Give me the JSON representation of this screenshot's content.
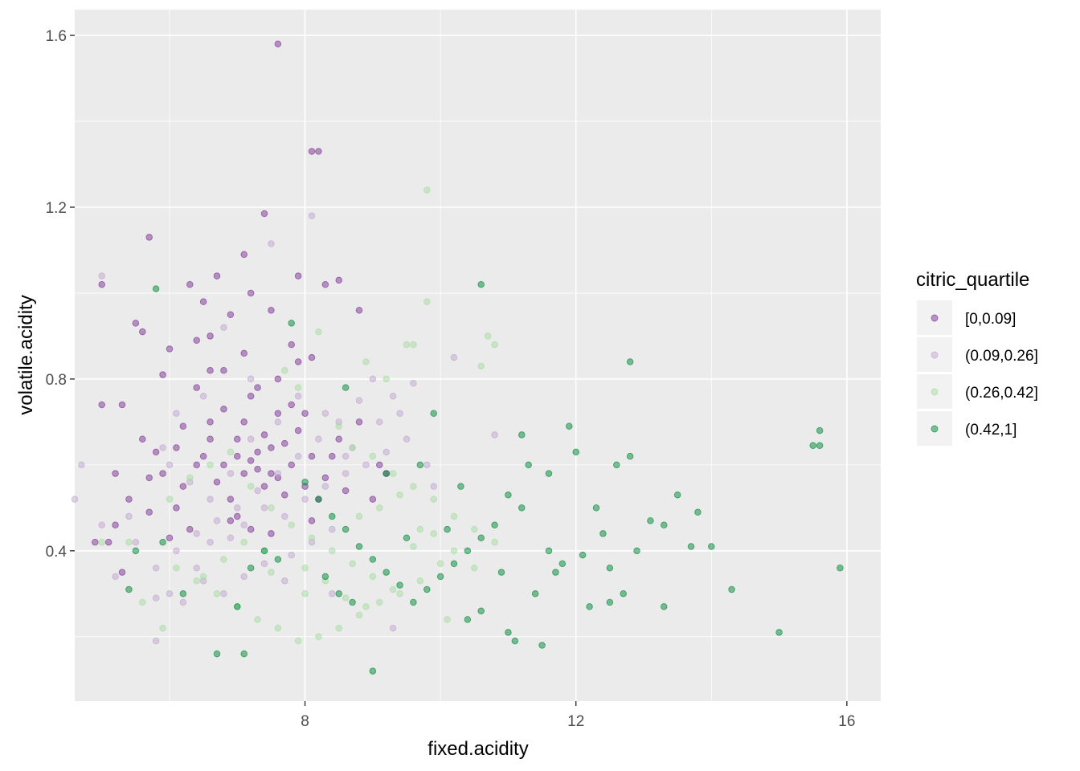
{
  "chart_data": {
    "type": "scatter",
    "title": "",
    "xlabel": "fixed.acidity",
    "ylabel": "volatile.acidity",
    "xlim": [
      4.6,
      16.5
    ],
    "ylim": [
      0.05,
      1.66
    ],
    "x_ticks": [
      8,
      12,
      16
    ],
    "y_ticks": [
      0.4,
      0.8,
      1.2,
      1.6
    ],
    "x_tick_labels": [
      "8",
      "12",
      "16"
    ],
    "y_tick_labels": [
      "0.4",
      "0.8",
      "1.2",
      "1.6"
    ],
    "grid": true,
    "panel_background": "#EBEBEB",
    "legend": {
      "title": "citric_quartile",
      "position": "right"
    },
    "series": [
      {
        "name": "[0,0.09]",
        "color": "#7B3294",
        "points": [
          [
            7.6,
            1.58
          ],
          [
            8.1,
            1.33
          ],
          [
            8.2,
            1.33
          ],
          [
            7.4,
            1.185
          ],
          [
            5.7,
            1.13
          ],
          [
            7.9,
            1.04
          ],
          [
            5.0,
            1.02
          ],
          [
            6.7,
            1.04
          ],
          [
            8.3,
            1.02
          ],
          [
            8.5,
            1.03
          ],
          [
            7.1,
            1.09
          ],
          [
            6.5,
            0.98
          ],
          [
            7.2,
            1.0
          ],
          [
            7.5,
            0.96
          ],
          [
            6.9,
            0.95
          ],
          [
            6.3,
            1.02
          ],
          [
            5.5,
            0.93
          ],
          [
            5.6,
            0.91
          ],
          [
            6.0,
            0.87
          ],
          [
            6.4,
            0.89
          ],
          [
            6.6,
            0.9
          ],
          [
            7.1,
            0.86
          ],
          [
            7.8,
            0.88
          ],
          [
            8.1,
            0.85
          ],
          [
            5.0,
            0.74
          ],
          [
            5.3,
            0.74
          ],
          [
            5.6,
            0.66
          ],
          [
            5.8,
            0.63
          ],
          [
            5.2,
            0.58
          ],
          [
            5.4,
            0.52
          ],
          [
            5.9,
            0.58
          ],
          [
            6.1,
            0.64
          ],
          [
            5.2,
            0.46
          ],
          [
            5.1,
            0.42
          ],
          [
            5.3,
            0.35
          ],
          [
            5.7,
            0.49
          ],
          [
            6.2,
            0.55
          ],
          [
            6.4,
            0.6
          ],
          [
            6.6,
            0.7
          ],
          [
            6.8,
            0.73
          ],
          [
            7.0,
            0.66
          ],
          [
            7.1,
            0.7
          ],
          [
            7.2,
            0.61
          ],
          [
            7.3,
            0.63
          ],
          [
            7.4,
            0.67
          ],
          [
            7.5,
            0.58
          ],
          [
            7.6,
            0.72
          ],
          [
            7.7,
            0.65
          ],
          [
            7.8,
            0.6
          ],
          [
            7.9,
            0.68
          ],
          [
            8.0,
            0.55
          ],
          [
            8.1,
            0.62
          ],
          [
            8.2,
            0.52
          ],
          [
            8.3,
            0.57
          ],
          [
            6.5,
            0.62
          ],
          [
            6.7,
            0.56
          ],
          [
            6.9,
            0.52
          ],
          [
            7.0,
            0.48
          ],
          [
            7.2,
            0.45
          ],
          [
            6.3,
            0.45
          ],
          [
            6.1,
            0.5
          ],
          [
            6.0,
            0.43
          ],
          [
            6.8,
            0.82
          ],
          [
            7.3,
            0.78
          ],
          [
            7.6,
            0.8
          ],
          [
            7.9,
            0.84
          ],
          [
            8.5,
            0.66
          ],
          [
            8.8,
            0.7
          ],
          [
            9.1,
            0.6
          ],
          [
            8.8,
            0.96
          ],
          [
            9.2,
            0.58
          ],
          [
            9.0,
            0.52
          ],
          [
            8.6,
            0.54
          ],
          [
            7.1,
            0.58
          ],
          [
            7.4,
            0.55
          ],
          [
            7.7,
            0.53
          ],
          [
            6.8,
            0.6
          ],
          [
            7.0,
            0.62
          ],
          [
            7.3,
            0.59
          ],
          [
            7.5,
            0.64
          ],
          [
            7.6,
            0.57
          ],
          [
            6.6,
            0.66
          ],
          [
            6.4,
            0.78
          ],
          [
            6.6,
            0.82
          ],
          [
            7.2,
            0.76
          ],
          [
            7.8,
            0.74
          ],
          [
            8.0,
            0.72
          ],
          [
            8.4,
            0.62
          ],
          [
            5.7,
            0.57
          ],
          [
            4.9,
            0.42
          ],
          [
            5.9,
            0.81
          ],
          [
            6.2,
            0.69
          ],
          [
            7.5,
            0.44
          ],
          [
            6.9,
            0.47
          ],
          [
            8.1,
            0.47
          ]
        ]
      },
      {
        "name": "(0.09,0.26]",
        "color": "#C2A5CF",
        "points": [
          [
            8.1,
            1.18
          ],
          [
            7.5,
            1.115
          ],
          [
            5.0,
            1.04
          ],
          [
            4.6,
            0.52
          ],
          [
            4.7,
            0.6
          ],
          [
            5.2,
            0.34
          ],
          [
            5.0,
            0.46
          ],
          [
            5.4,
            0.48
          ],
          [
            5.8,
            0.29
          ],
          [
            5.8,
            0.19
          ],
          [
            6.0,
            0.3
          ],
          [
            6.2,
            0.28
          ],
          [
            6.4,
            0.36
          ],
          [
            6.6,
            0.42
          ],
          [
            6.9,
            0.43
          ],
          [
            7.1,
            0.46
          ],
          [
            7.4,
            0.5
          ],
          [
            7.7,
            0.48
          ],
          [
            8.0,
            0.52
          ],
          [
            8.3,
            0.55
          ],
          [
            8.6,
            0.58
          ],
          [
            8.9,
            0.6
          ],
          [
            9.2,
            0.63
          ],
          [
            9.5,
            0.66
          ],
          [
            10.2,
            0.85
          ],
          [
            10.8,
            0.67
          ],
          [
            9.0,
            0.8
          ],
          [
            8.8,
            0.75
          ],
          [
            8.5,
            0.7
          ],
          [
            8.2,
            0.66
          ],
          [
            7.9,
            0.62
          ],
          [
            7.6,
            0.58
          ],
          [
            7.3,
            0.54
          ],
          [
            7.0,
            0.5
          ],
          [
            6.7,
            0.47
          ],
          [
            6.4,
            0.44
          ],
          [
            6.1,
            0.4
          ],
          [
            5.8,
            0.36
          ],
          [
            5.5,
            0.42
          ],
          [
            5.9,
            0.64
          ],
          [
            6.1,
            0.72
          ],
          [
            6.5,
            0.76
          ],
          [
            6.8,
            0.92
          ],
          [
            7.2,
            0.8
          ],
          [
            7.6,
            0.7
          ],
          [
            7.9,
            0.76
          ],
          [
            8.3,
            0.72
          ],
          [
            8.7,
            0.64
          ],
          [
            9.1,
            0.7
          ],
          [
            9.4,
            0.72
          ],
          [
            9.8,
            0.6
          ],
          [
            9.9,
            0.55
          ],
          [
            8.4,
            0.45
          ],
          [
            8.1,
            0.42
          ],
          [
            7.8,
            0.39
          ],
          [
            7.4,
            0.37
          ],
          [
            7.1,
            0.34
          ],
          [
            6.8,
            0.3
          ],
          [
            6.5,
            0.33
          ],
          [
            9.3,
            0.22
          ],
          [
            8.4,
            0.3
          ],
          [
            7.7,
            0.33
          ],
          [
            7.2,
            0.66
          ],
          [
            6.9,
            0.58
          ],
          [
            6.6,
            0.52
          ],
          [
            6.3,
            0.56
          ],
          [
            6.0,
            0.6
          ],
          [
            8.6,
            0.62
          ],
          [
            9.6,
            0.79
          ],
          [
            9.3,
            0.76
          ]
        ]
      },
      {
        "name": "(0.26,0.42]",
        "color": "#A6DBA0",
        "points": [
          [
            9.8,
            1.24
          ],
          [
            9.8,
            0.98
          ],
          [
            10.7,
            0.9
          ],
          [
            10.8,
            0.88
          ],
          [
            10.6,
            0.83
          ],
          [
            9.5,
            0.88
          ],
          [
            9.6,
            0.88
          ],
          [
            9.2,
            0.8
          ],
          [
            8.9,
            0.84
          ],
          [
            8.2,
            0.91
          ],
          [
            7.7,
            0.82
          ],
          [
            7.9,
            0.78
          ],
          [
            8.5,
            0.69
          ],
          [
            8.7,
            0.64
          ],
          [
            9.0,
            0.62
          ],
          [
            9.3,
            0.58
          ],
          [
            9.6,
            0.55
          ],
          [
            9.9,
            0.52
          ],
          [
            10.2,
            0.48
          ],
          [
            10.5,
            0.45
          ],
          [
            10.0,
            0.37
          ],
          [
            9.7,
            0.33
          ],
          [
            9.4,
            0.3
          ],
          [
            9.1,
            0.28
          ],
          [
            8.8,
            0.25
          ],
          [
            8.5,
            0.22
          ],
          [
            8.2,
            0.2
          ],
          [
            7.9,
            0.19
          ],
          [
            7.6,
            0.22
          ],
          [
            7.3,
            0.24
          ],
          [
            7.0,
            0.27
          ],
          [
            6.7,
            0.3
          ],
          [
            6.4,
            0.33
          ],
          [
            6.1,
            0.36
          ],
          [
            5.9,
            0.22
          ],
          [
            5.6,
            0.28
          ],
          [
            5.4,
            0.42
          ],
          [
            5.0,
            0.42
          ],
          [
            6.0,
            0.52
          ],
          [
            6.3,
            0.57
          ],
          [
            6.6,
            0.6
          ],
          [
            6.9,
            0.63
          ],
          [
            7.2,
            0.55
          ],
          [
            7.5,
            0.5
          ],
          [
            7.8,
            0.46
          ],
          [
            8.1,
            0.43
          ],
          [
            8.4,
            0.4
          ],
          [
            8.7,
            0.37
          ],
          [
            9.0,
            0.34
          ],
          [
            9.3,
            0.31
          ],
          [
            9.6,
            0.41
          ],
          [
            9.9,
            0.44
          ],
          [
            10.2,
            0.4
          ],
          [
            10.5,
            0.36
          ],
          [
            10.8,
            0.42
          ],
          [
            8.0,
            0.36
          ],
          [
            8.3,
            0.33
          ],
          [
            8.6,
            0.29
          ],
          [
            8.9,
            0.27
          ],
          [
            7.4,
            0.4
          ],
          [
            7.1,
            0.42
          ],
          [
            6.8,
            0.38
          ],
          [
            6.5,
            0.34
          ],
          [
            9.4,
            0.53
          ],
          [
            9.1,
            0.5
          ],
          [
            8.8,
            0.48
          ],
          [
            10.1,
            0.24
          ],
          [
            8.0,
            0.3
          ],
          [
            7.5,
            0.35
          ],
          [
            9.7,
            0.45
          ]
        ]
      },
      {
        "name": "(0.42,1]",
        "color": "#008837",
        "points": [
          [
            10.6,
            1.02
          ],
          [
            12.8,
            0.84
          ],
          [
            15.6,
            0.68
          ],
          [
            15.5,
            0.645
          ],
          [
            15.6,
            0.645
          ],
          [
            15.9,
            0.36
          ],
          [
            15.0,
            0.21
          ],
          [
            14.3,
            0.31
          ],
          [
            14.0,
            0.41
          ],
          [
            13.7,
            0.41
          ],
          [
            13.8,
            0.49
          ],
          [
            13.5,
            0.53
          ],
          [
            13.3,
            0.46
          ],
          [
            13.1,
            0.47
          ],
          [
            12.9,
            0.4
          ],
          [
            12.7,
            0.3
          ],
          [
            12.5,
            0.36
          ],
          [
            12.3,
            0.5
          ],
          [
            12.0,
            0.63
          ],
          [
            11.9,
            0.69
          ],
          [
            11.6,
            0.58
          ],
          [
            11.3,
            0.6
          ],
          [
            11.2,
            0.67
          ],
          [
            11.0,
            0.53
          ],
          [
            10.8,
            0.46
          ],
          [
            10.6,
            0.43
          ],
          [
            10.4,
            0.4
          ],
          [
            10.2,
            0.37
          ],
          [
            10.0,
            0.34
          ],
          [
            9.8,
            0.31
          ],
          [
            9.6,
            0.28
          ],
          [
            9.4,
            0.32
          ],
          [
            9.2,
            0.35
          ],
          [
            9.0,
            0.38
          ],
          [
            8.8,
            0.41
          ],
          [
            8.6,
            0.45
          ],
          [
            8.4,
            0.48
          ],
          [
            8.2,
            0.52
          ],
          [
            8.0,
            0.56
          ],
          [
            7.8,
            0.93
          ],
          [
            7.6,
            0.38
          ],
          [
            7.4,
            0.4
          ],
          [
            7.2,
            0.36
          ],
          [
            7.0,
            0.27
          ],
          [
            7.1,
            0.16
          ],
          [
            6.7,
            0.16
          ],
          [
            6.2,
            0.3
          ],
          [
            5.9,
            0.42
          ],
          [
            5.4,
            0.31
          ],
          [
            5.5,
            0.4
          ],
          [
            5.8,
            1.01
          ],
          [
            9.0,
            0.12
          ],
          [
            11.0,
            0.21
          ],
          [
            11.1,
            0.19
          ],
          [
            11.5,
            0.18
          ],
          [
            10.4,
            0.24
          ],
          [
            10.6,
            0.26
          ],
          [
            11.6,
            0.4
          ],
          [
            11.8,
            0.37
          ],
          [
            12.1,
            0.39
          ],
          [
            12.4,
            0.44
          ],
          [
            12.6,
            0.6
          ],
          [
            12.8,
            0.62
          ],
          [
            13.3,
            0.27
          ],
          [
            9.9,
            0.72
          ],
          [
            8.6,
            0.78
          ],
          [
            9.2,
            0.58
          ],
          [
            9.7,
            0.6
          ],
          [
            10.3,
            0.55
          ],
          [
            10.9,
            0.35
          ],
          [
            11.4,
            0.3
          ],
          [
            11.7,
            0.35
          ],
          [
            12.2,
            0.27
          ],
          [
            12.5,
            0.28
          ],
          [
            8.7,
            0.28
          ],
          [
            8.5,
            0.3
          ],
          [
            8.3,
            0.34
          ],
          [
            9.5,
            0.43
          ],
          [
            10.1,
            0.45
          ],
          [
            11.2,
            0.5
          ]
        ]
      }
    ]
  }
}
